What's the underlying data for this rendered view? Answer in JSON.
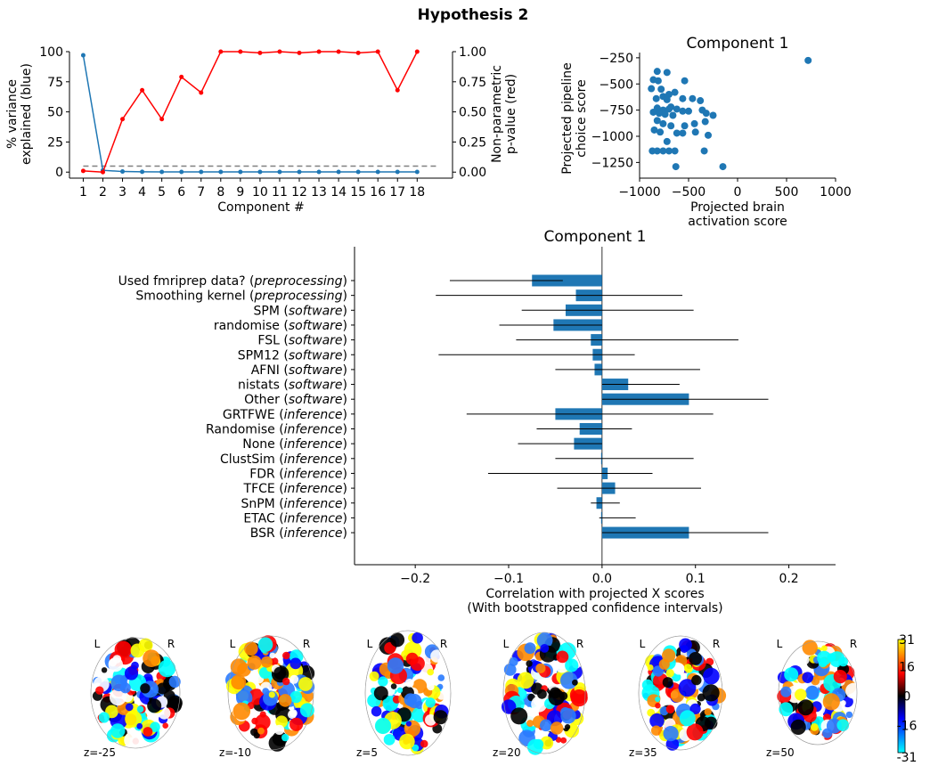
{
  "figure": {
    "title": "Hypothesis 2"
  },
  "chart_data": [
    {
      "type": "line",
      "name": "variance-pvalue",
      "title": "",
      "xlabel": "Component #",
      "ylabel_left_lines": [
        "% variance",
        "explained (blue)"
      ],
      "ylabel_right_lines": [
        "Non-parametric",
        "p-value (red)"
      ],
      "x": [
        1,
        2,
        3,
        4,
        5,
        6,
        7,
        8,
        9,
        10,
        11,
        12,
        13,
        14,
        15,
        16,
        17,
        18
      ],
      "xlim": [
        0.3,
        19.8
      ],
      "ylim_left": [
        -5,
        100
      ],
      "ylim_right": [
        -0.05,
        1.0
      ],
      "yticks_left": [
        "0",
        "25",
        "50",
        "75",
        "100"
      ],
      "yticks_left_values": [
        0,
        25,
        50,
        75,
        100
      ],
      "yticks_right": [
        "0.00",
        "0.25",
        "0.50",
        "0.75",
        "1.00"
      ],
      "yticks_right_values": [
        0,
        0.25,
        0.5,
        0.75,
        1.0
      ],
      "threshold_right": 0.05,
      "series": [
        {
          "axis": "left",
          "color": "#1f77b4",
          "values": [
            97,
            1.5,
            0.5,
            0.3,
            0.2,
            0.2,
            0.2,
            0.2,
            0.2,
            0.2,
            0.2,
            0.2,
            0.2,
            0.2,
            0.2,
            0.2,
            0.2,
            0.2
          ]
        },
        {
          "axis": "right",
          "color": "#ff0000",
          "values": [
            0.01,
            0.0,
            0.44,
            0.68,
            0.44,
            0.79,
            0.66,
            1.0,
            1.0,
            0.99,
            1.0,
            0.99,
            1.0,
            1.0,
            0.99,
            1.0,
            0.68,
            1.0
          ]
        }
      ]
    },
    {
      "type": "scatter",
      "name": "component-1-scatter",
      "title": "Component 1",
      "xlabel_lines": [
        "Projected brain",
        "activation score"
      ],
      "ylabel_lines": [
        "Projected pipeline",
        "choice score"
      ],
      "xlim": [
        -1000,
        1000
      ],
      "ylim": [
        -1400,
        -200
      ],
      "xticks": [
        "−1000",
        "−500",
        "0",
        "500",
        "1000"
      ],
      "xticks_values": [
        -1000,
        -500,
        0,
        500,
        1000
      ],
      "yticks": [
        "−250",
        "−500",
        "−750",
        "−1000",
        "−1250"
      ],
      "yticks_values": [
        -250,
        -500,
        -750,
        -1000,
        -1250
      ],
      "color": "#1f77b4",
      "points": [
        [
          720,
          -275
        ],
        [
          -860,
          -460
        ],
        [
          -810,
          -470
        ],
        [
          -820,
          -380
        ],
        [
          -720,
          -390
        ],
        [
          -540,
          -470
        ],
        [
          -880,
          -545
        ],
        [
          -780,
          -550
        ],
        [
          -700,
          -600
        ],
        [
          -640,
          -580
        ],
        [
          -760,
          -620
        ],
        [
          -720,
          -650
        ],
        [
          -830,
          -640
        ],
        [
          -560,
          -640
        ],
        [
          -460,
          -640
        ],
        [
          -380,
          -660
        ],
        [
          -820,
          -730
        ],
        [
          -760,
          -750
        ],
        [
          -680,
          -720
        ],
        [
          -620,
          -740
        ],
        [
          -560,
          -760
        ],
        [
          -500,
          -760
        ],
        [
          -360,
          -750
        ],
        [
          -320,
          -780
        ],
        [
          -250,
          -800
        ],
        [
          -860,
          -770
        ],
        [
          -800,
          -780
        ],
        [
          -740,
          -790
        ],
        [
          -660,
          -800
        ],
        [
          -700,
          -740
        ],
        [
          -820,
          -850
        ],
        [
          -760,
          -880
        ],
        [
          -680,
          -900
        ],
        [
          -540,
          -900
        ],
        [
          -440,
          -880
        ],
        [
          -330,
          -860
        ],
        [
          -850,
          -940
        ],
        [
          -790,
          -960
        ],
        [
          -620,
          -970
        ],
        [
          -560,
          -970
        ],
        [
          -430,
          -960
        ],
        [
          -300,
          -990
        ],
        [
          -720,
          -1050
        ],
        [
          -870,
          -1140
        ],
        [
          -820,
          -1140
        ],
        [
          -760,
          -1140
        ],
        [
          -700,
          -1140
        ],
        [
          -640,
          -1140
        ],
        [
          -340,
          -1140
        ],
        [
          -630,
          -1290
        ],
        [
          -150,
          -1290
        ]
      ]
    },
    {
      "type": "bar",
      "name": "component-1-correlations",
      "title": "Component 1",
      "xlabel_lines": [
        "Correlation with projected X scores",
        "(With bootstrapped confidence intervals)"
      ],
      "xlim": [
        -0.265,
        0.25
      ],
      "xticks": [
        "−0.2",
        "−0.1",
        "0.0",
        "0.1",
        "0.2"
      ],
      "xticks_values": [
        -0.2,
        -0.1,
        0,
        0.1,
        0.2
      ],
      "color": "#1f77b4",
      "bars": [
        {
          "name": "Used fmriprep data?",
          "tag": "preprocessing",
          "value": -0.075,
          "ci": [
            -0.163,
            -0.042
          ]
        },
        {
          "name": "Smoothing kernel",
          "tag": "preprocessing",
          "value": -0.028,
          "ci": [
            -0.178,
            0.086
          ]
        },
        {
          "name": "SPM",
          "tag": "software",
          "value": -0.039,
          "ci": [
            -0.086,
            0.098
          ]
        },
        {
          "name": "randomise",
          "tag": "software",
          "value": -0.052,
          "ci": [
            -0.11,
            0.0
          ]
        },
        {
          "name": "FSL",
          "tag": "software",
          "value": -0.012,
          "ci": [
            -0.092,
            0.146
          ]
        },
        {
          "name": "SPM12",
          "tag": "software",
          "value": -0.01,
          "ci": [
            -0.175,
            0.035
          ]
        },
        {
          "name": "AFNI",
          "tag": "software",
          "value": -0.008,
          "ci": [
            -0.05,
            0.105
          ]
        },
        {
          "name": "nistats",
          "tag": "software",
          "value": 0.028,
          "ci": [
            0.0,
            0.083
          ]
        },
        {
          "name": "Other",
          "tag": "software",
          "value": 0.093,
          "ci": [
            0.0,
            0.178
          ]
        },
        {
          "name": "GRTFWE",
          "tag": "inference",
          "value": -0.05,
          "ci": [
            -0.145,
            0.119
          ]
        },
        {
          "name": "Randomise",
          "tag": "inference",
          "value": -0.024,
          "ci": [
            -0.07,
            0.032
          ]
        },
        {
          "name": "None",
          "tag": "inference",
          "value": -0.03,
          "ci": [
            -0.09,
            0.0
          ]
        },
        {
          "name": "ClustSim",
          "tag": "inference",
          "value": -0.001,
          "ci": [
            -0.05,
            0.098
          ]
        },
        {
          "name": "FDR",
          "tag": "inference",
          "value": 0.006,
          "ci": [
            -0.122,
            0.054
          ]
        },
        {
          "name": "TFCE",
          "tag": "inference",
          "value": 0.014,
          "ci": [
            -0.048,
            0.106
          ]
        },
        {
          "name": "SnPM",
          "tag": "inference",
          "value": -0.006,
          "ci": [
            -0.012,
            0.019
          ]
        },
        {
          "name": "ETAC",
          "tag": "inference",
          "value": -0.001,
          "ci": [
            -0.003,
            0.036
          ]
        },
        {
          "name": "BSR",
          "tag": "inference",
          "value": 0.093,
          "ci": [
            0.0,
            0.178
          ]
        }
      ]
    },
    {
      "type": "heatmap",
      "name": "brain-slices",
      "orientation_labels": [
        "L",
        "R"
      ],
      "slices": [
        "z=-25",
        "z=-10",
        "z=5",
        "z=20",
        "z=35",
        "z=50"
      ],
      "colorbar": {
        "range": [
          -31,
          31
        ],
        "ticks": [
          "31",
          "16",
          "0",
          "-16",
          "-31"
        ],
        "ticks_values": [
          31,
          16,
          0,
          -16,
          -31
        ],
        "colors": [
          "#00ffff",
          "#0000ff",
          "#000000",
          "#ff0000",
          "#ffff00"
        ]
      }
    }
  ]
}
